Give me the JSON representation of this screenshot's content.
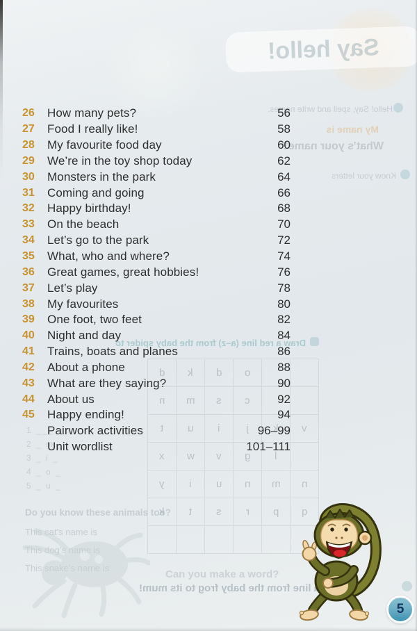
{
  "page_badge": {
    "number": "5"
  },
  "toc": {
    "entries": [
      {
        "num": "26",
        "title": "How many pets?",
        "page": "56"
      },
      {
        "num": "27",
        "title": "Food I really like!",
        "page": "58"
      },
      {
        "num": "28",
        "title": "My favourite food day",
        "page": "60"
      },
      {
        "num": "29",
        "title": "We’re in the toy shop today",
        "page": "62"
      },
      {
        "num": "30",
        "title": "Monsters in the park",
        "page": "64"
      },
      {
        "num": "31",
        "title": "Coming and going",
        "page": "66"
      },
      {
        "num": "32",
        "title": "Happy birthday!",
        "page": "68"
      },
      {
        "num": "33",
        "title": "On the beach",
        "page": "70"
      },
      {
        "num": "34",
        "title": "Let’s go to the park",
        "page": "72"
      },
      {
        "num": "35",
        "title": "What, who and where?",
        "page": "74"
      },
      {
        "num": "36",
        "title": "Great games, great hobbies!",
        "page": "76"
      },
      {
        "num": "37",
        "title": "Let’s play",
        "page": "78"
      },
      {
        "num": "38",
        "title": "My favourites",
        "page": "80"
      },
      {
        "num": "39",
        "title": "One foot, two feet",
        "page": "82"
      },
      {
        "num": "40",
        "title": "Night and day",
        "page": "84"
      },
      {
        "num": "41",
        "title": "Trains, boats and planes",
        "page": "86"
      },
      {
        "num": "42",
        "title": "About a phone",
        "page": "88"
      },
      {
        "num": "43",
        "title": "What are they saying?",
        "page": "90"
      },
      {
        "num": "44",
        "title": "About us",
        "page": "92"
      },
      {
        "num": "45",
        "title": "Happy ending!",
        "page": "94"
      },
      {
        "num": "",
        "title": "Pairwork activities",
        "page": "96–99"
      },
      {
        "num": "",
        "title": "Unit wordlist",
        "page": "101–111"
      }
    ]
  },
  "bleed_through": {
    "say_hello": "Say hello!",
    "hello_line": "Hello! Say, spell and write names.",
    "my_name": "My name is",
    "whats_name": "What’s your name?",
    "know_letters": "Know your letters",
    "draw_red_line": "Draw a red line (a–z) from the baby spider to",
    "animals_question": "Do you know these animals too?",
    "cat_line": "This cat’s name is",
    "dog_line": "This dog’s name is",
    "snake_line": "This snake’s name is",
    "make_word": "Can you make a word?",
    "frog_line": "a line from the baby frog to its mum!",
    "blanks": [
      "1 ___",
      "2 _ m _",
      "3 _ i _",
      "4 _ o _",
      "5 _ u _"
    ],
    "grid_letters": [
      [
        "d",
        "k",
        "d",
        "o",
        "",
        ""
      ],
      [
        "n",
        "m",
        "s",
        "c",
        "",
        ""
      ],
      [
        "t",
        "u",
        "i",
        "j",
        "k",
        "v"
      ],
      [
        "x",
        "w",
        "v",
        "g",
        "l",
        ""
      ],
      [
        "y",
        "i",
        "u",
        "n",
        "m",
        "n"
      ],
      [
        "k",
        "t",
        "s",
        "r",
        "p",
        "q"
      ],
      [
        "",
        "",
        "",
        "",
        "",
        ""
      ]
    ]
  },
  "colors": {
    "entry_number": "#c8932f",
    "body_text": "#2e2e2f",
    "page_badge_top": "#8ac0d2",
    "page_badge_bottom": "#3e93b1",
    "page_badge_text": "#16335c",
    "monkey_fur": "#6b6f28",
    "monkey_skin": "#f3d7a8"
  }
}
